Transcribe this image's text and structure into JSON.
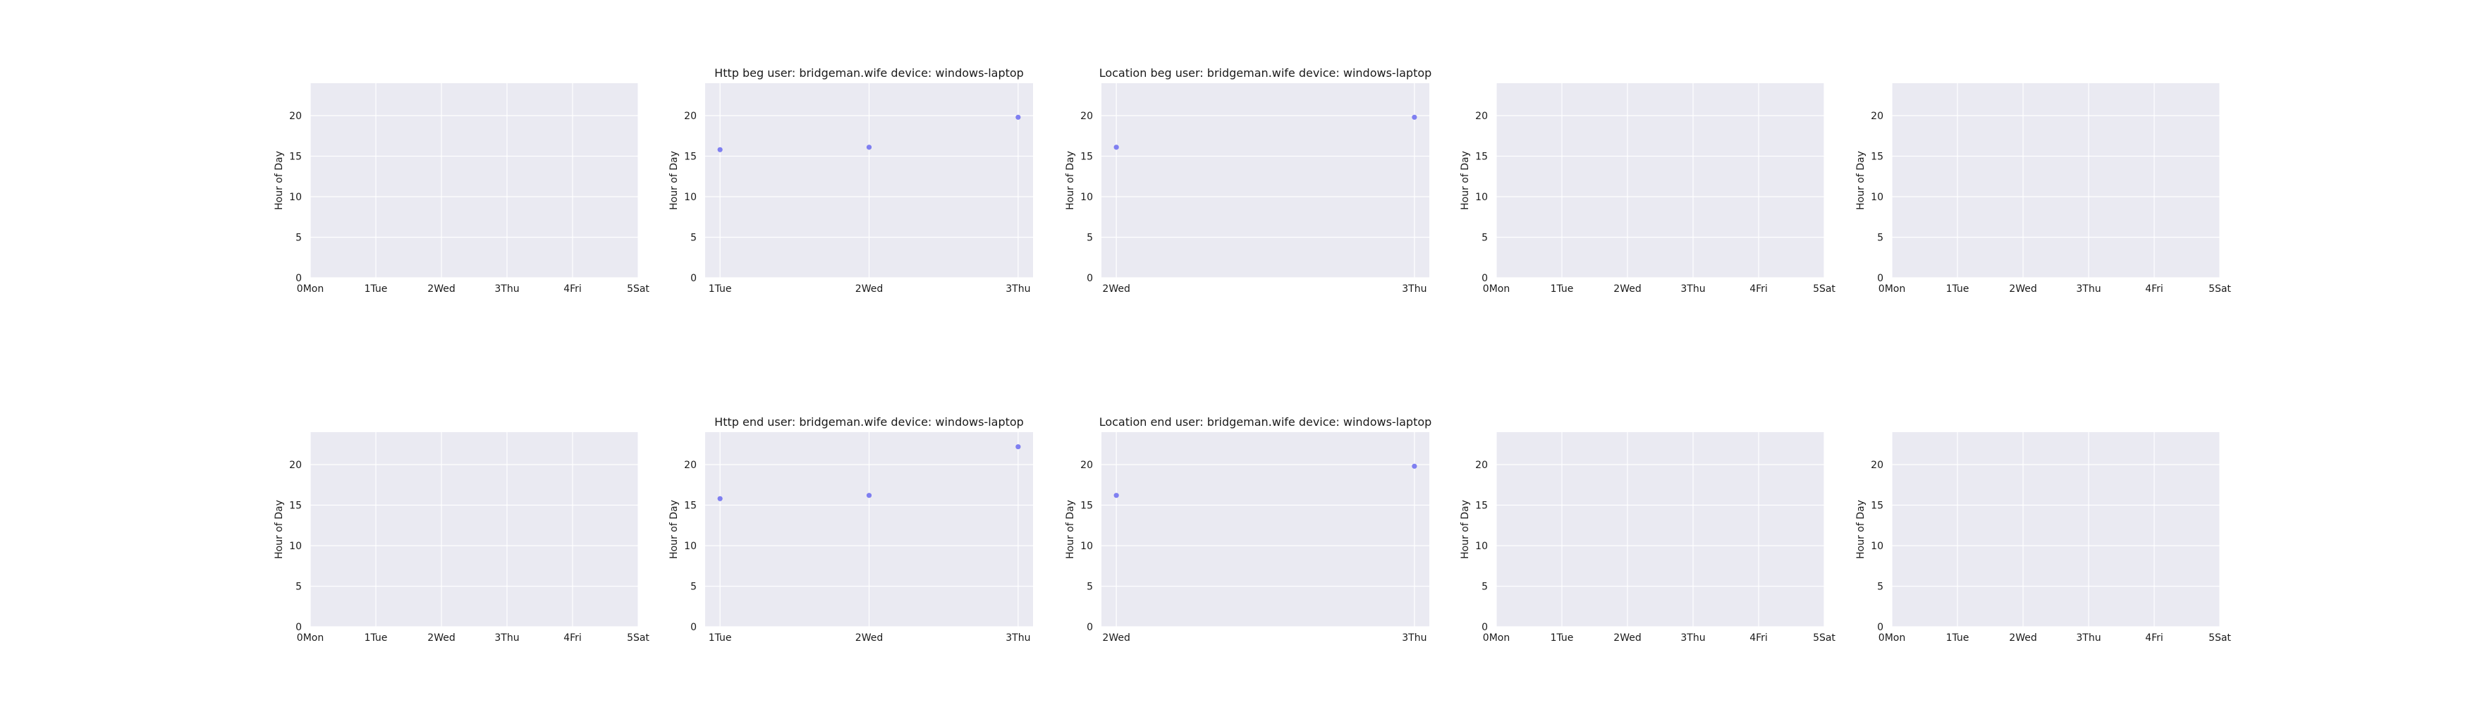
{
  "figure": {
    "background": "#ffffff",
    "plot_background": "#eaeaf2",
    "grid_color": "#ffffff",
    "point_color": "#6b6bf0"
  },
  "chart_data": [
    {
      "type": "scatter",
      "title": "",
      "ylabel": "Hour of Day",
      "ylim": [
        0,
        24
      ],
      "yticks": [
        0,
        5,
        10,
        15,
        20
      ],
      "xlim": [
        0,
        5
      ],
      "xticks": [
        0,
        1,
        2,
        3,
        4,
        5
      ],
      "xticklabels": [
        "0Mon",
        "1Tue",
        "2Wed",
        "3Thu",
        "4Fri",
        "5Sat"
      ],
      "points": [],
      "grid": true
    },
    {
      "type": "scatter",
      "title": "Http beg user: bridgeman.wife device: windows-laptop",
      "ylabel": "Hour of Day",
      "ylim": [
        0,
        24
      ],
      "yticks": [
        0,
        5,
        10,
        15,
        20
      ],
      "xlim": [
        0.9,
        3.1
      ],
      "xticks": [
        1,
        2,
        3
      ],
      "xticklabels": [
        "1Tue",
        "2Wed",
        "3Thu"
      ],
      "points": [
        {
          "x": 1,
          "y": 15.8
        },
        {
          "x": 2,
          "y": 16.1
        },
        {
          "x": 3,
          "y": 19.8
        }
      ],
      "grid": true
    },
    {
      "type": "scatter",
      "title": "Location beg user: bridgeman.wife device: windows-laptop",
      "ylabel": "Hour of Day",
      "ylim": [
        0,
        24
      ],
      "yticks": [
        0,
        5,
        10,
        15,
        20
      ],
      "xlim": [
        1.95,
        3.05
      ],
      "xticks": [
        2,
        3
      ],
      "xticklabels": [
        "2Wed",
        "3Thu"
      ],
      "points": [
        {
          "x": 2,
          "y": 16.1
        },
        {
          "x": 3,
          "y": 19.8
        }
      ],
      "grid": true
    },
    {
      "type": "scatter",
      "title": "",
      "ylabel": "Hour of Day",
      "ylim": [
        0,
        24
      ],
      "yticks": [
        0,
        5,
        10,
        15,
        20
      ],
      "xlim": [
        0,
        5
      ],
      "xticks": [
        0,
        1,
        2,
        3,
        4,
        5
      ],
      "xticklabels": [
        "0Mon",
        "1Tue",
        "2Wed",
        "3Thu",
        "4Fri",
        "5Sat"
      ],
      "points": [],
      "grid": true
    },
    {
      "type": "scatter",
      "title": "",
      "ylabel": "Hour of Day",
      "ylim": [
        0,
        24
      ],
      "yticks": [
        0,
        5,
        10,
        15,
        20
      ],
      "xlim": [
        0,
        5
      ],
      "xticks": [
        0,
        1,
        2,
        3,
        4,
        5
      ],
      "xticklabels": [
        "0Mon",
        "1Tue",
        "2Wed",
        "3Thu",
        "4Fri",
        "5Sat"
      ],
      "points": [],
      "grid": true
    },
    {
      "type": "scatter",
      "title": "",
      "ylabel": "Hour of Day",
      "ylim": [
        0,
        24
      ],
      "yticks": [
        0,
        5,
        10,
        15,
        20
      ],
      "xlim": [
        0,
        5
      ],
      "xticks": [
        0,
        1,
        2,
        3,
        4,
        5
      ],
      "xticklabels": [
        "0Mon",
        "1Tue",
        "2Wed",
        "3Thu",
        "4Fri",
        "5Sat"
      ],
      "points": [],
      "grid": true
    },
    {
      "type": "scatter",
      "title": "Http end user: bridgeman.wife device: windows-laptop",
      "ylabel": "Hour of Day",
      "ylim": [
        0,
        24
      ],
      "yticks": [
        0,
        5,
        10,
        15,
        20
      ],
      "xlim": [
        0.9,
        3.1
      ],
      "xticks": [
        1,
        2,
        3
      ],
      "xticklabels": [
        "1Tue",
        "2Wed",
        "3Thu"
      ],
      "points": [
        {
          "x": 1,
          "y": 15.8
        },
        {
          "x": 2,
          "y": 16.2
        },
        {
          "x": 3,
          "y": 22.2
        }
      ],
      "grid": true
    },
    {
      "type": "scatter",
      "title": "Location end user: bridgeman.wife device: windows-laptop",
      "ylabel": "Hour of Day",
      "ylim": [
        0,
        24
      ],
      "yticks": [
        0,
        5,
        10,
        15,
        20
      ],
      "xlim": [
        1.95,
        3.05
      ],
      "xticks": [
        2,
        3
      ],
      "xticklabels": [
        "2Wed",
        "3Thu"
      ],
      "points": [
        {
          "x": 2,
          "y": 16.2
        },
        {
          "x": 3,
          "y": 19.8
        }
      ],
      "grid": true
    },
    {
      "type": "scatter",
      "title": "",
      "ylabel": "Hour of Day",
      "ylim": [
        0,
        24
      ],
      "yticks": [
        0,
        5,
        10,
        15,
        20
      ],
      "xlim": [
        0,
        5
      ],
      "xticks": [
        0,
        1,
        2,
        3,
        4,
        5
      ],
      "xticklabels": [
        "0Mon",
        "1Tue",
        "2Wed",
        "3Thu",
        "4Fri",
        "5Sat"
      ],
      "points": [],
      "grid": true
    },
    {
      "type": "scatter",
      "title": "",
      "ylabel": "Hour of Day",
      "ylim": [
        0,
        24
      ],
      "yticks": [
        0,
        5,
        10,
        15,
        20
      ],
      "xlim": [
        0,
        5
      ],
      "xticks": [
        0,
        1,
        2,
        3,
        4,
        5
      ],
      "xticklabels": [
        "0Mon",
        "1Tue",
        "2Wed",
        "3Thu",
        "4Fri",
        "5Sat"
      ],
      "points": [],
      "grid": true
    }
  ]
}
